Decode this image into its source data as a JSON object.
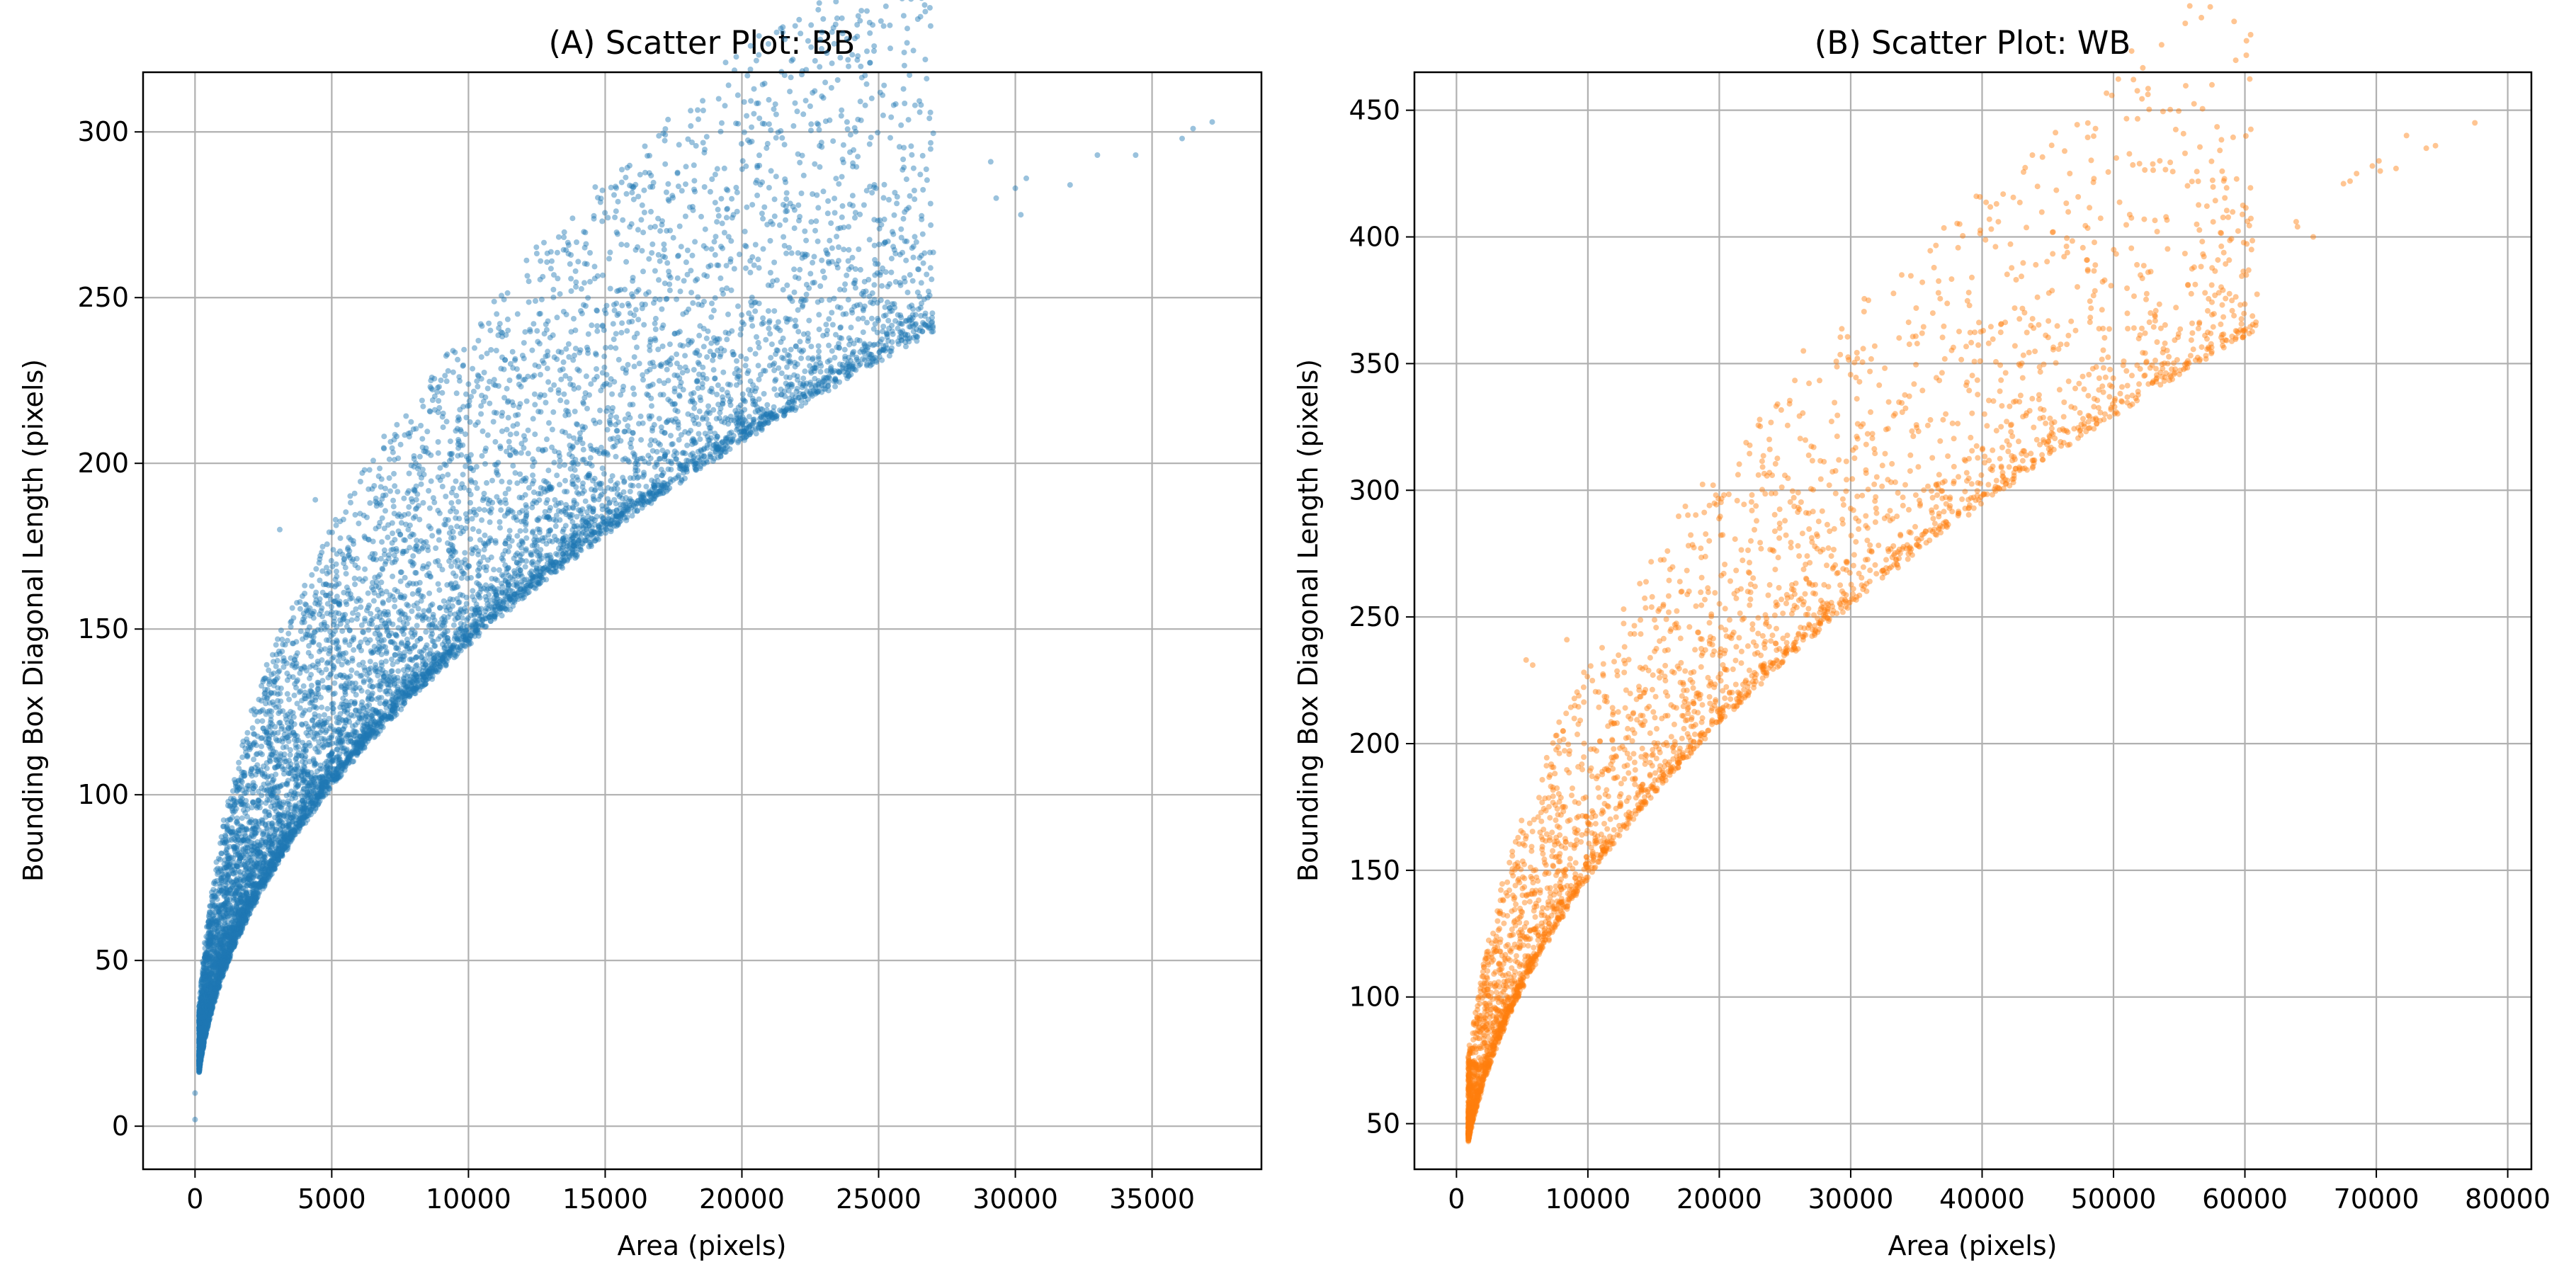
{
  "figure": {
    "background": "#ffffff",
    "grid_color": "#b0b0b0",
    "spine_color": "#000000"
  },
  "chart_data": [
    {
      "type": "scatter",
      "id": "A",
      "title": "(A) Scatter Plot: BB",
      "xlabel": "Area (pixels)",
      "ylabel": "Bounding Box Diagonal Length (pixels)",
      "color": "#1f77b4",
      "alpha": 0.45,
      "grid": true,
      "xlim": [
        -1900,
        39000
      ],
      "ylim": [
        -13,
        318
      ],
      "xticks": [
        0,
        5000,
        10000,
        15000,
        20000,
        25000,
        30000,
        35000
      ],
      "xtick_labels": [
        "0",
        "5000",
        "10000",
        "15000",
        "20000",
        "25000",
        "30000",
        "35000"
      ],
      "yticks": [
        0,
        50,
        100,
        150,
        200,
        250,
        300
      ],
      "ytick_labels": [
        "0",
        "50",
        "100",
        "150",
        "200",
        "250",
        "300"
      ],
      "trend": {
        "model": "y = k*sqrt(x)",
        "k_lower": 1.47,
        "k_upper": 2.9,
        "x_min": 150,
        "x_max": 27000,
        "n_points": 9000
      },
      "highlighted_points": [
        {
          "x": 0,
          "y": 2
        },
        {
          "x": 0,
          "y": 10
        },
        {
          "x": 3100,
          "y": 180
        },
        {
          "x": 4400,
          "y": 189
        },
        {
          "x": 6200,
          "y": 198
        },
        {
          "x": 10000,
          "y": 201
        },
        {
          "x": 15200,
          "y": 235
        },
        {
          "x": 16000,
          "y": 255
        },
        {
          "x": 17000,
          "y": 261
        },
        {
          "x": 23600,
          "y": 271
        },
        {
          "x": 25100,
          "y": 272
        },
        {
          "x": 26500,
          "y": 262
        },
        {
          "x": 29100,
          "y": 291
        },
        {
          "x": 29300,
          "y": 280
        },
        {
          "x": 30000,
          "y": 283
        },
        {
          "x": 30400,
          "y": 286
        },
        {
          "x": 30200,
          "y": 275
        },
        {
          "x": 32000,
          "y": 284
        },
        {
          "x": 33000,
          "y": 293
        },
        {
          "x": 34400,
          "y": 293
        },
        {
          "x": 36100,
          "y": 298
        },
        {
          "x": 36500,
          "y": 301
        },
        {
          "x": 37200,
          "y": 303
        }
      ]
    },
    {
      "type": "scatter",
      "id": "B",
      "title": "(B) Scatter Plot: WB",
      "xlabel": "Area (pixels)",
      "ylabel": "Bounding Box Diagonal Length (pixels)",
      "color": "#ff7f0e",
      "alpha": 0.45,
      "grid": true,
      "xlim": [
        -3200,
        81800
      ],
      "ylim": [
        32,
        465
      ],
      "xticks": [
        0,
        10000,
        20000,
        30000,
        40000,
        50000,
        60000,
        70000,
        80000
      ],
      "xtick_labels": [
        "0",
        "10000",
        "20000",
        "30000",
        "40000",
        "50000",
        "60000",
        "70000",
        "80000"
      ],
      "yticks": [
        50,
        100,
        150,
        200,
        250,
        300,
        350,
        400,
        450
      ],
      "ytick_labels": [
        "50",
        "100",
        "150",
        "200",
        "250",
        "300",
        "350",
        "400",
        "450"
      ],
      "trend": {
        "model": "y = k*sqrt(x)",
        "k_lower": 1.48,
        "k_upper": 2.55,
        "x_min": 900,
        "x_max": 61000,
        "n_points": 3500
      },
      "highlighted_points": [
        {
          "x": 1000,
          "y": 52
        },
        {
          "x": 1200,
          "y": 58
        },
        {
          "x": 5300,
          "y": 233
        },
        {
          "x": 5800,
          "y": 231
        },
        {
          "x": 8400,
          "y": 241
        },
        {
          "x": 26400,
          "y": 355
        },
        {
          "x": 40500,
          "y": 358
        },
        {
          "x": 42500,
          "y": 357
        },
        {
          "x": 60500,
          "y": 395
        },
        {
          "x": 63900,
          "y": 406
        },
        {
          "x": 64000,
          "y": 404
        },
        {
          "x": 65200,
          "y": 400
        },
        {
          "x": 67500,
          "y": 421
        },
        {
          "x": 68000,
          "y": 422
        },
        {
          "x": 68500,
          "y": 425
        },
        {
          "x": 69700,
          "y": 428
        },
        {
          "x": 70200,
          "y": 430
        },
        {
          "x": 70300,
          "y": 426
        },
        {
          "x": 71500,
          "y": 427
        },
        {
          "x": 73800,
          "y": 435
        },
        {
          "x": 74500,
          "y": 436
        },
        {
          "x": 72300,
          "y": 440
        },
        {
          "x": 77500,
          "y": 445
        }
      ]
    }
  ]
}
